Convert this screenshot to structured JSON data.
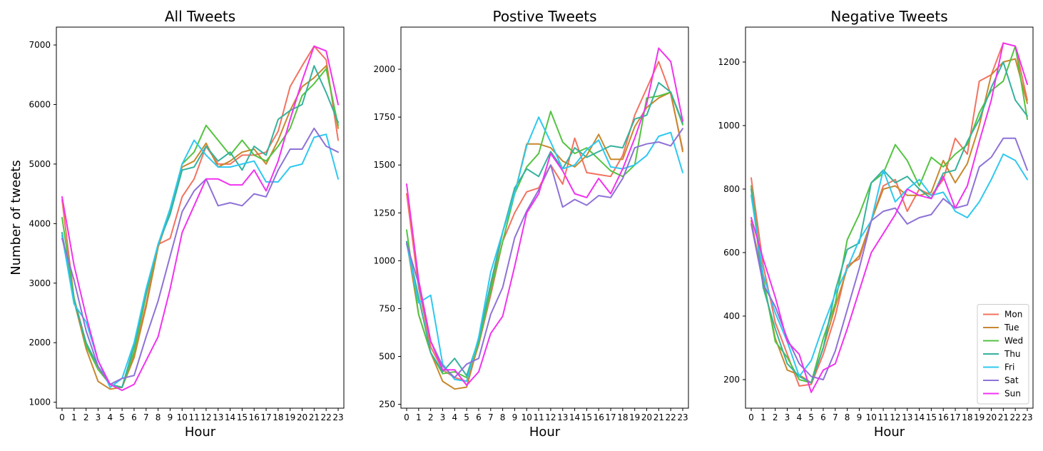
{
  "chart_data": [
    {
      "type": "line",
      "title": "All Tweets",
      "xlabel": "Hour",
      "ylabel": "Number of tweets",
      "x": [
        0,
        1,
        2,
        3,
        4,
        5,
        6,
        7,
        8,
        9,
        10,
        11,
        12,
        13,
        14,
        15,
        16,
        17,
        18,
        19,
        20,
        21,
        22,
        23
      ],
      "ylim": [
        900,
        7300
      ],
      "yticks": [
        1000,
        2000,
        3000,
        4000,
        5000,
        6000,
        7000
      ],
      "grid": false,
      "series": [
        {
          "name": "Mon",
          "color": "#f2735f",
          "values": [
            4400,
            2750,
            2000,
            1550,
            1300,
            1250,
            1800,
            2650,
            3650,
            3750,
            4450,
            4750,
            5300,
            5000,
            5000,
            5150,
            5150,
            5200,
            5550,
            6300,
            6650,
            6980,
            6750,
            5400
          ]
        },
        {
          "name": "Tue",
          "color": "#c8882e",
          "values": [
            3800,
            2700,
            1900,
            1350,
            1220,
            1250,
            1750,
            2600,
            3600,
            4200,
            4950,
            5050,
            5350,
            4950,
            5050,
            5200,
            5250,
            5000,
            5400,
            5900,
            6300,
            6450,
            6650,
            5600
          ]
        },
        {
          "name": "Wed",
          "color": "#54c341",
          "values": [
            4100,
            2750,
            1950,
            1550,
            1300,
            1250,
            1850,
            2800,
            3650,
            4200,
            5000,
            5200,
            5650,
            5400,
            5150,
            5400,
            5150,
            5050,
            5300,
            5600,
            6150,
            6350,
            6600,
            5650
          ]
        },
        {
          "name": "Thu",
          "color": "#35b29e",
          "values": [
            3850,
            2700,
            2000,
            1600,
            1300,
            1250,
            1950,
            2850,
            3650,
            4150,
            4900,
            4950,
            5300,
            5050,
            5200,
            4900,
            5300,
            5150,
            5750,
            5900,
            6000,
            6650,
            6200,
            5700
          ]
        },
        {
          "name": "Fri",
          "color": "#2ec8f0",
          "values": [
            3800,
            2650,
            2350,
            1700,
            1250,
            1400,
            2000,
            2900,
            3650,
            4250,
            5000,
            5400,
            5150,
            4950,
            4950,
            5000,
            5050,
            4700,
            4700,
            4950,
            5000,
            5450,
            5500,
            4750
          ]
        },
        {
          "name": "Sat",
          "color": "#8e72d6",
          "values": [
            3750,
            3050,
            2200,
            1600,
            1300,
            1400,
            1450,
            2100,
            2700,
            3450,
            4200,
            4550,
            4750,
            4300,
            4350,
            4300,
            4500,
            4450,
            4900,
            5250,
            5250,
            5600,
            5300,
            5200
          ]
        },
        {
          "name": "Sun",
          "color": "#f232f0",
          "values": [
            4450,
            3300,
            2450,
            1700,
            1300,
            1200,
            1300,
            1700,
            2100,
            2900,
            3850,
            4300,
            4750,
            4750,
            4650,
            4650,
            4900,
            4550,
            5050,
            5750,
            6400,
            6980,
            6900,
            6000
          ]
        }
      ]
    },
    {
      "type": "line",
      "title": "Postive Tweets",
      "xlabel": "Hour",
      "ylabel": "",
      "x": [
        0,
        1,
        2,
        3,
        4,
        5,
        6,
        7,
        8,
        9,
        10,
        11,
        12,
        13,
        14,
        15,
        16,
        17,
        18,
        19,
        20,
        21,
        22,
        23
      ],
      "ylim": [
        230,
        2220
      ],
      "yticks": [
        250,
        500,
        750,
        1000,
        1250,
        1500,
        1750,
        2000
      ],
      "grid": false,
      "series": [
        {
          "name": "Mon",
          "color": "#f2735f",
          "values": [
            1350,
            860,
            550,
            430,
            390,
            370,
            560,
            820,
            1100,
            1250,
            1360,
            1380,
            1500,
            1400,
            1640,
            1460,
            1450,
            1440,
            1550,
            1760,
            1900,
            2040,
            1870,
            1580
          ]
        },
        {
          "name": "Tue",
          "color": "#c8882e",
          "values": [
            1100,
            720,
            520,
            370,
            330,
            340,
            570,
            850,
            1150,
            1350,
            1610,
            1610,
            1590,
            1520,
            1490,
            1550,
            1660,
            1530,
            1530,
            1700,
            1800,
            1850,
            1880,
            1570
          ]
        },
        {
          "name": "Wed",
          "color": "#54c341",
          "values": [
            1160,
            720,
            520,
            410,
            420,
            390,
            570,
            840,
            1100,
            1350,
            1490,
            1560,
            1780,
            1620,
            1560,
            1590,
            1530,
            1470,
            1440,
            1500,
            1850,
            1860,
            1880,
            1710
          ]
        },
        {
          "name": "Thu",
          "color": "#35b29e",
          "values": [
            1100,
            810,
            520,
            420,
            490,
            400,
            590,
            880,
            1150,
            1380,
            1480,
            1440,
            1570,
            1480,
            1590,
            1540,
            1570,
            1600,
            1590,
            1740,
            1760,
            1930,
            1880,
            1720
          ]
        },
        {
          "name": "Fri",
          "color": "#2ec8f0",
          "values": [
            1090,
            780,
            820,
            460,
            380,
            370,
            600,
            940,
            1150,
            1350,
            1600,
            1750,
            1620,
            1480,
            1500,
            1580,
            1630,
            1490,
            1480,
            1500,
            1550,
            1650,
            1670,
            1460
          ]
        },
        {
          "name": "Sat",
          "color": "#8e72d6",
          "values": [
            1090,
            880,
            580,
            450,
            390,
            460,
            490,
            720,
            860,
            1120,
            1260,
            1370,
            1500,
            1280,
            1320,
            1290,
            1340,
            1330,
            1430,
            1590,
            1610,
            1620,
            1600,
            1690
          ]
        },
        {
          "name": "Sun",
          "color": "#f232f0",
          "values": [
            1400,
            900,
            580,
            430,
            430,
            350,
            420,
            620,
            710,
            970,
            1250,
            1350,
            1560,
            1470,
            1350,
            1330,
            1430,
            1350,
            1480,
            1640,
            1820,
            2110,
            2040,
            1730
          ]
        }
      ]
    },
    {
      "type": "line",
      "title": "Negative Tweets",
      "xlabel": "Hour",
      "ylabel": "",
      "x": [
        0,
        1,
        2,
        3,
        4,
        5,
        6,
        7,
        8,
        9,
        10,
        11,
        12,
        13,
        14,
        15,
        16,
        17,
        18,
        19,
        20,
        21,
        22,
        23
      ],
      "ylim": [
        110,
        1310
      ],
      "yticks": [
        200,
        400,
        600,
        800,
        1000,
        1200
      ],
      "grid": false,
      "legend": "lower right",
      "series": [
        {
          "name": "Mon",
          "color": "#f2735f",
          "values": [
            835,
            560,
            380,
            280,
            180,
            185,
            280,
            400,
            560,
            580,
            700,
            810,
            830,
            730,
            800,
            780,
            830,
            960,
            910,
            1140,
            1160,
            1260,
            1250,
            1080
          ]
        },
        {
          "name": "Tue",
          "color": "#c8882e",
          "values": [
            700,
            510,
            330,
            230,
            215,
            190,
            300,
            430,
            550,
            590,
            700,
            800,
            810,
            780,
            780,
            790,
            890,
            820,
            880,
            1000,
            1160,
            1200,
            1210,
            1070
          ]
        },
        {
          "name": "Wed",
          "color": "#54c341",
          "values": [
            810,
            520,
            320,
            270,
            200,
            190,
            330,
            440,
            640,
            720,
            820,
            850,
            940,
            890,
            810,
            900,
            870,
            910,
            940,
            1040,
            1110,
            1140,
            1250,
            1020
          ]
        },
        {
          "name": "Thu",
          "color": "#35b29e",
          "values": [
            800,
            490,
            360,
            250,
            210,
            190,
            300,
            480,
            610,
            630,
            820,
            860,
            820,
            840,
            800,
            770,
            850,
            860,
            950,
            1020,
            1120,
            1200,
            1080,
            1030
          ]
        },
        {
          "name": "Fri",
          "color": "#2ec8f0",
          "values": [
            780,
            530,
            410,
            320,
            210,
            260,
            370,
            470,
            550,
            640,
            700,
            860,
            760,
            800,
            830,
            780,
            790,
            730,
            710,
            760,
            830,
            910,
            890,
            830
          ]
        },
        {
          "name": "Sat",
          "color": "#8e72d6",
          "values": [
            690,
            500,
            430,
            330,
            250,
            210,
            200,
            290,
            420,
            550,
            700,
            730,
            740,
            690,
            710,
            720,
            770,
            740,
            750,
            870,
            900,
            960,
            960,
            860
          ]
        },
        {
          "name": "Sun",
          "color": "#f232f0",
          "values": [
            710,
            580,
            460,
            320,
            280,
            160,
            230,
            250,
            360,
            480,
            600,
            660,
            720,
            800,
            780,
            770,
            840,
            740,
            810,
            950,
            1080,
            1260,
            1250,
            1130
          ]
        }
      ]
    }
  ]
}
